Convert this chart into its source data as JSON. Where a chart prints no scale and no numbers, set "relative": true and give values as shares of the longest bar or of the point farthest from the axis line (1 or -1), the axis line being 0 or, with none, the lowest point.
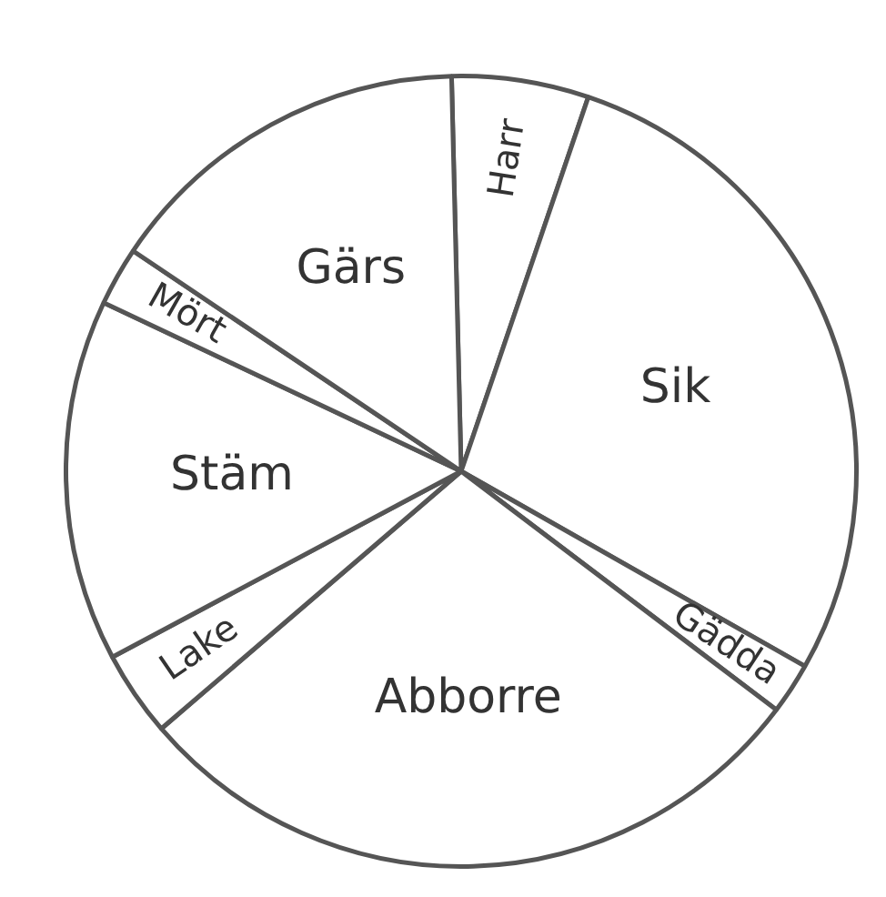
{
  "chart_data": {
    "type": "pie",
    "relative": true,
    "legend": false,
    "categories": [
      "Harr",
      "Sik",
      "Gädda",
      "Abborre",
      "Lake",
      "Stäm",
      "Mört",
      "Gärs"
    ],
    "values": [
      5.6,
      28.0,
      2.1,
      28.4,
      3.5,
      14.8,
      2.4,
      15.2
    ],
    "colors": [
      "#ffffff",
      "#ffffff",
      "#ffffff",
      "#ffffff",
      "#ffffff",
      "#ffffff",
      "#ffffff",
      "#ffffff"
    ]
  }
}
